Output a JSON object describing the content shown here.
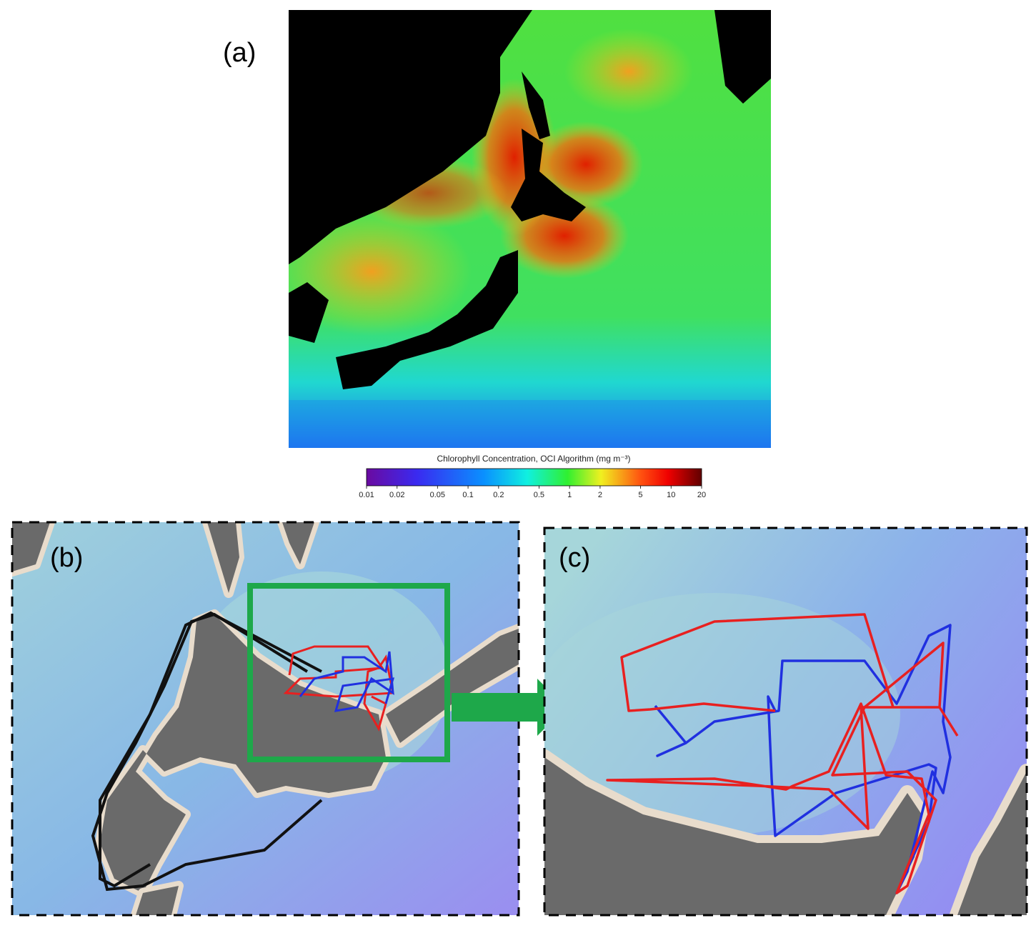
{
  "labels": [
    "(a)",
    "(b)",
    "(c)"
  ],
  "colorbar": {
    "title": "Chlorophyll Concentration, OCI Algorithm (mg m⁻³)",
    "range": [
      0.01,
      20
    ],
    "log": true,
    "ticks": [
      0.01,
      0.02,
      0.05,
      0.1,
      0.2,
      0.5,
      1,
      2,
      5,
      10,
      20
    ]
  }
}
